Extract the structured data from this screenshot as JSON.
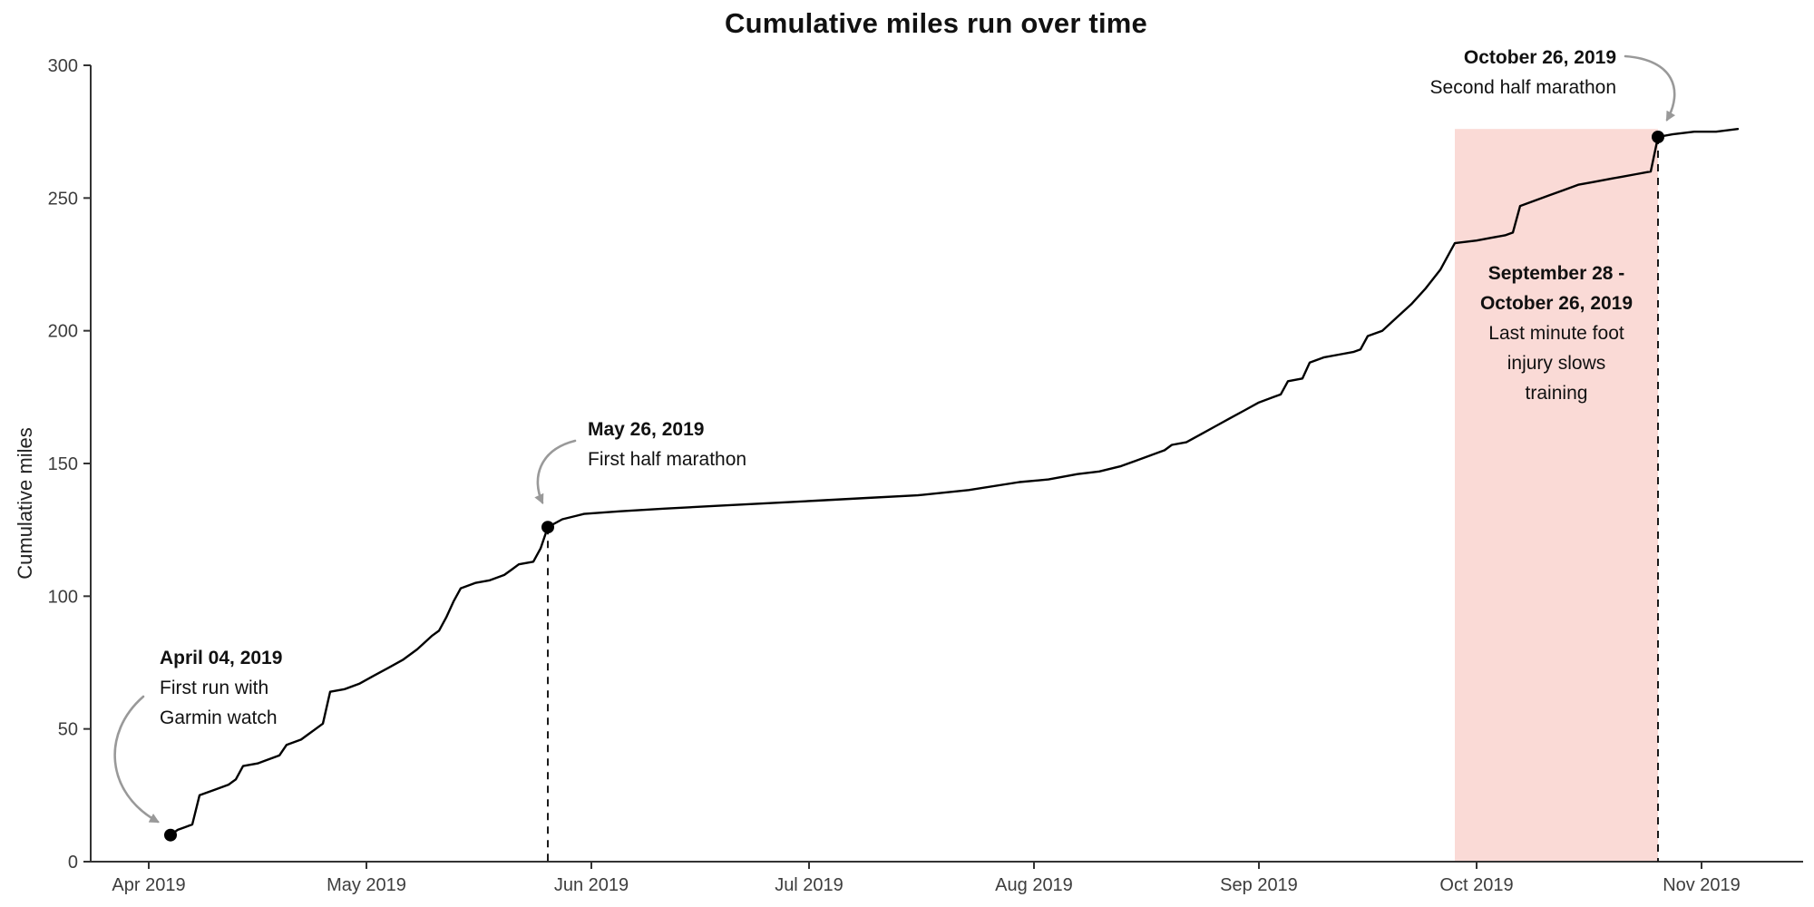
{
  "chart_data": {
    "type": "line",
    "title": "Cumulative miles run over time",
    "xlabel": "",
    "ylabel": "Cumulative miles",
    "ylim": [
      0,
      300
    ],
    "yticks": [
      0,
      50,
      100,
      150,
      200,
      250,
      300
    ],
    "x_domain": [
      "2019-03-24",
      "2019-11-12"
    ],
    "xticks": [
      {
        "date": "2019-04-01",
        "label": "Apr 2019"
      },
      {
        "date": "2019-05-01",
        "label": "May 2019"
      },
      {
        "date": "2019-06-01",
        "label": "Jun 2019"
      },
      {
        "date": "2019-07-01",
        "label": "Jul 2019"
      },
      {
        "date": "2019-08-01",
        "label": "Aug 2019"
      },
      {
        "date": "2019-09-01",
        "label": "Sep 2019"
      },
      {
        "date": "2019-10-01",
        "label": "Oct 2019"
      },
      {
        "date": "2019-11-01",
        "label": "Nov 2019"
      }
    ],
    "grid": false,
    "legend": false,
    "line_color": "#000000",
    "marker_color": "#000000",
    "axis_color": "#333333",
    "tick_label_color": "#3d3d3d",
    "text_color": "#111111",
    "dashed_line_color": "#1a1a1a",
    "annotation_arrow_color": "#999999",
    "series": [
      {
        "name": "Cumulative miles",
        "points": [
          [
            "2019-04-04",
            10
          ],
          [
            "2019-04-05",
            12
          ],
          [
            "2019-04-06",
            13
          ],
          [
            "2019-04-07",
            14
          ],
          [
            "2019-04-08",
            25
          ],
          [
            "2019-04-10",
            27
          ],
          [
            "2019-04-12",
            29
          ],
          [
            "2019-04-13",
            31
          ],
          [
            "2019-04-14",
            36
          ],
          [
            "2019-04-16",
            37
          ],
          [
            "2019-04-17",
            38
          ],
          [
            "2019-04-19",
            40
          ],
          [
            "2019-04-20",
            44
          ],
          [
            "2019-04-22",
            46
          ],
          [
            "2019-04-23",
            48
          ],
          [
            "2019-04-24",
            50
          ],
          [
            "2019-04-25",
            52
          ],
          [
            "2019-04-26",
            64
          ],
          [
            "2019-04-28",
            65
          ],
          [
            "2019-04-30",
            67
          ],
          [
            "2019-05-02",
            70
          ],
          [
            "2019-05-04",
            73
          ],
          [
            "2019-05-06",
            76
          ],
          [
            "2019-05-08",
            80
          ],
          [
            "2019-05-10",
            85
          ],
          [
            "2019-05-11",
            87
          ],
          [
            "2019-05-12",
            92
          ],
          [
            "2019-05-13",
            98
          ],
          [
            "2019-05-14",
            103
          ],
          [
            "2019-05-16",
            105
          ],
          [
            "2019-05-18",
            106
          ],
          [
            "2019-05-20",
            108
          ],
          [
            "2019-05-21",
            110
          ],
          [
            "2019-05-22",
            112
          ],
          [
            "2019-05-24",
            113
          ],
          [
            "2019-05-25",
            118
          ],
          [
            "2019-05-26",
            126
          ],
          [
            "2019-05-28",
            129
          ],
          [
            "2019-05-31",
            131
          ],
          [
            "2019-06-05",
            132
          ],
          [
            "2019-06-11",
            133
          ],
          [
            "2019-06-18",
            134
          ],
          [
            "2019-06-25",
            135
          ],
          [
            "2019-07-02",
            136
          ],
          [
            "2019-07-09",
            137
          ],
          [
            "2019-07-16",
            138
          ],
          [
            "2019-07-23",
            140
          ],
          [
            "2019-07-30",
            143
          ],
          [
            "2019-08-03",
            144
          ],
          [
            "2019-08-07",
            146
          ],
          [
            "2019-08-10",
            147
          ],
          [
            "2019-08-13",
            149
          ],
          [
            "2019-08-15",
            151
          ],
          [
            "2019-08-17",
            153
          ],
          [
            "2019-08-19",
            155
          ],
          [
            "2019-08-20",
            157
          ],
          [
            "2019-08-22",
            158
          ],
          [
            "2019-08-24",
            161
          ],
          [
            "2019-08-26",
            164
          ],
          [
            "2019-08-28",
            167
          ],
          [
            "2019-08-30",
            170
          ],
          [
            "2019-09-01",
            173
          ],
          [
            "2019-09-03",
            175
          ],
          [
            "2019-09-04",
            176
          ],
          [
            "2019-09-05",
            181
          ],
          [
            "2019-09-07",
            182
          ],
          [
            "2019-09-08",
            188
          ],
          [
            "2019-09-10",
            190
          ],
          [
            "2019-09-12",
            191
          ],
          [
            "2019-09-14",
            192
          ],
          [
            "2019-09-15",
            193
          ],
          [
            "2019-09-16",
            198
          ],
          [
            "2019-09-18",
            200
          ],
          [
            "2019-09-20",
            205
          ],
          [
            "2019-09-22",
            210
          ],
          [
            "2019-09-24",
            216
          ],
          [
            "2019-09-26",
            223
          ],
          [
            "2019-09-27",
            228
          ],
          [
            "2019-09-28",
            233
          ],
          [
            "2019-10-01",
            234
          ],
          [
            "2019-10-03",
            235
          ],
          [
            "2019-10-05",
            236
          ],
          [
            "2019-10-06",
            237
          ],
          [
            "2019-10-07",
            247
          ],
          [
            "2019-10-09",
            249
          ],
          [
            "2019-10-11",
            251
          ],
          [
            "2019-10-13",
            253
          ],
          [
            "2019-10-15",
            255
          ],
          [
            "2019-10-17",
            256
          ],
          [
            "2019-10-19",
            257
          ],
          [
            "2019-10-21",
            258
          ],
          [
            "2019-10-23",
            259
          ],
          [
            "2019-10-25",
            260
          ],
          [
            "2019-10-26",
            273
          ],
          [
            "2019-10-28",
            274
          ],
          [
            "2019-10-31",
            275
          ],
          [
            "2019-11-03",
            275
          ],
          [
            "2019-11-06",
            276
          ]
        ]
      }
    ],
    "markers": [
      {
        "date": "2019-04-04",
        "miles": 10,
        "dashed": false
      },
      {
        "date": "2019-05-26",
        "miles": 126,
        "dashed": true
      },
      {
        "date": "2019-10-26",
        "miles": 273,
        "dashed": true
      }
    ],
    "shaded_region": {
      "start": "2019-09-28",
      "end": "2019-10-26",
      "top_miles": 276,
      "color": "#fadad6"
    },
    "annotations": [
      {
        "id": "first-run",
        "bold_lines": [
          "April 04, 2019"
        ],
        "lines": [
          "First run with",
          "Garmin watch"
        ]
      },
      {
        "id": "first-half",
        "bold_lines": [
          "May 26, 2019"
        ],
        "lines": [
          "First half marathon"
        ]
      },
      {
        "id": "second-half",
        "bold_lines": [
          "October 26, 2019"
        ],
        "lines": [
          "Second half marathon"
        ]
      },
      {
        "id": "injury",
        "bold_lines": [
          "September 28 -",
          "October 26, 2019"
        ],
        "lines": [
          "Last minute foot",
          "injury slows",
          "training"
        ]
      }
    ]
  }
}
